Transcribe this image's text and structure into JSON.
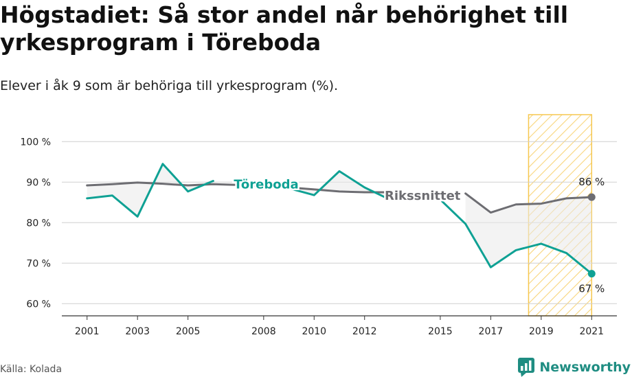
{
  "title": "Högstadiet: Så stor andel når behörighet till yrkesprogram i Töreboda",
  "subtitle": "Elever i åk 9 som är behöriga till yrkesprogram (%).",
  "source": "Källa: Kolada",
  "brand": "Newsworthy",
  "colors": {
    "toreboda": "#0fa194",
    "riksnittet": "#6d6d72",
    "highlight": "#f6c74f",
    "fill": "#e9e9e9",
    "brand": "#1f8d82"
  },
  "chart_data": {
    "type": "line",
    "x": [
      2001,
      2002,
      2003,
      2004,
      2005,
      2006,
      2007,
      2008,
      2009,
      2010,
      2011,
      2012,
      2013,
      2014,
      2015,
      2016,
      2017,
      2018,
      2019,
      2020,
      2021
    ],
    "x_ticks": [
      2001,
      2003,
      2005,
      2008,
      2010,
      2012,
      2015,
      2017,
      2019,
      2021
    ],
    "y_ticks": [
      60,
      70,
      80,
      90,
      100
    ],
    "y_tick_labels": [
      "60 %",
      "70 %",
      "80 %",
      "90 %",
      "100 %"
    ],
    "ylim": [
      57,
      107
    ],
    "xlim": [
      2000.0,
      2022.0
    ],
    "grid": true,
    "highlight_range": [
      2018.5,
      2021
    ],
    "series": [
      {
        "name": "Töreboda",
        "values": [
          86,
          86.7,
          81.5,
          94.5,
          87.7,
          90.3,
          null,
          null,
          88.5,
          86.8,
          92.7,
          88.7,
          85.7,
          null,
          85.7,
          79.7,
          69,
          73.2,
          74.8,
          72.5,
          67.4
        ],
        "end_label": "67 %"
      },
      {
        "name": "Rikssnittet",
        "values": [
          89.2,
          89.5,
          89.9,
          89.6,
          89.2,
          89.5,
          89.3,
          89,
          88.7,
          88.2,
          87.7,
          87.5,
          87.5,
          null,
          null,
          87.2,
          82.5,
          84.5,
          84.7,
          86,
          86.3
        ],
        "end_label": "86 %"
      }
    ]
  }
}
